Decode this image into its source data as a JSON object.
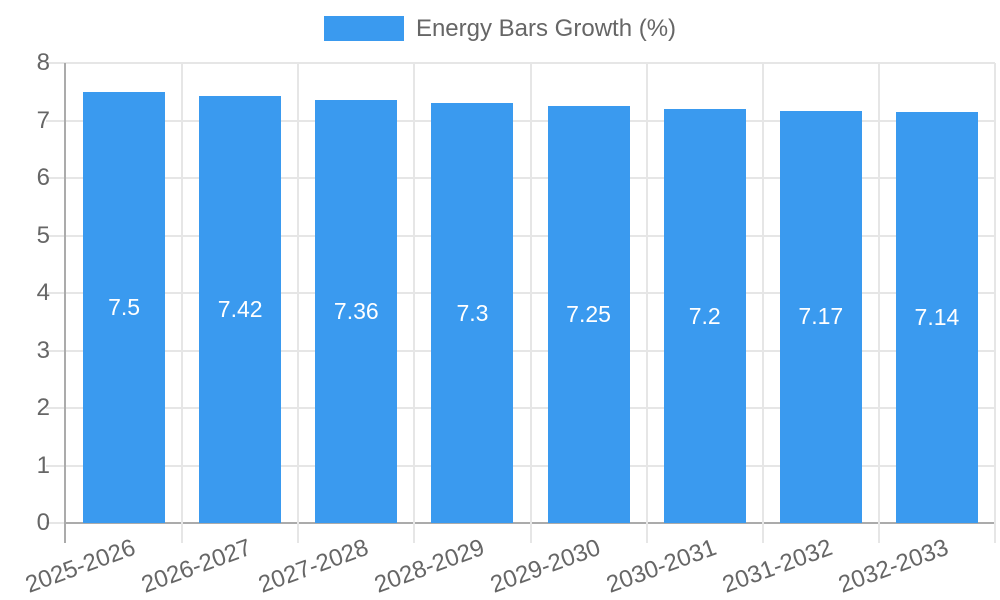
{
  "chart_data": {
    "type": "bar",
    "title": "Energy Bars Growth (%)",
    "legend": {
      "label": "Energy Bars Growth (%)",
      "position": "top"
    },
    "categories": [
      "2025-2026",
      "2026-2027",
      "2027-2028",
      "2028-2029",
      "2029-2030",
      "2030-2031",
      "2031-2032",
      "2032-2033"
    ],
    "series": [
      {
        "name": "Energy Bars Growth (%)",
        "values": [
          7.5,
          7.42,
          7.36,
          7.3,
          7.25,
          7.2,
          7.17,
          7.14
        ],
        "value_labels": [
          "7.5",
          "7.42",
          "7.36",
          "7.3",
          "7.25",
          "7.2",
          "7.17",
          "7.14"
        ]
      }
    ],
    "xlabel": "",
    "ylabel": "",
    "ylim": [
      0,
      8
    ],
    "yticks": [
      0,
      1,
      2,
      3,
      4,
      5,
      6,
      7,
      8
    ],
    "grid": true,
    "x_label_rotation_deg": -20,
    "colors": {
      "bar": "#3A9AEF",
      "grid": "#E6E6E6",
      "axis": "#ABABAB",
      "tick_text": "#666666",
      "bar_label_text": "#FFFFFF",
      "background": "#FFFFFF"
    }
  }
}
